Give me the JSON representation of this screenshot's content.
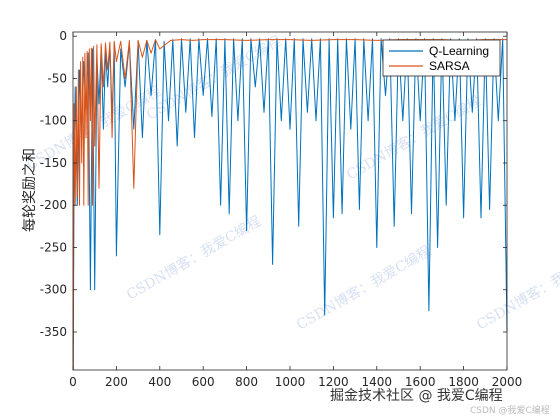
{
  "chart_data": {
    "type": "line",
    "title": "",
    "xlabel": "",
    "ylabel": "每轮奖励之和",
    "xlim": [
      0,
      2000
    ],
    "ylim": [
      -395,
      5
    ],
    "xticks": [
      0,
      200,
      400,
      600,
      800,
      1000,
      1200,
      1400,
      1600,
      1800,
      2000
    ],
    "yticks": [
      0,
      -50,
      -100,
      -150,
      -200,
      -250,
      -300,
      -350
    ],
    "grid": false,
    "legend_position": "top-right",
    "series": [
      {
        "name": "Q-Learning",
        "color": "#0072BD",
        "x": [
          1,
          5,
          10,
          20,
          30,
          40,
          50,
          60,
          70,
          80,
          90,
          100,
          110,
          120,
          130,
          140,
          150,
          160,
          170,
          180,
          190,
          200,
          220,
          240,
          260,
          280,
          300,
          320,
          340,
          360,
          380,
          400,
          420,
          440,
          460,
          480,
          500,
          520,
          540,
          560,
          580,
          600,
          620,
          640,
          660,
          680,
          700,
          720,
          740,
          760,
          780,
          800,
          820,
          840,
          860,
          880,
          900,
          920,
          940,
          960,
          980,
          1000,
          1020,
          1040,
          1060,
          1080,
          1100,
          1120,
          1140,
          1160,
          1180,
          1200,
          1220,
          1240,
          1260,
          1280,
          1300,
          1320,
          1340,
          1360,
          1380,
          1400,
          1420,
          1440,
          1460,
          1480,
          1500,
          1520,
          1540,
          1560,
          1580,
          1600,
          1620,
          1640,
          1660,
          1680,
          1700,
          1720,
          1740,
          1760,
          1780,
          1800,
          1820,
          1840,
          1860,
          1880,
          1900,
          1920,
          1940,
          1960,
          1980,
          2000
        ],
        "y": [
          -395,
          -150,
          -60,
          -200,
          -40,
          -120,
          -30,
          -90,
          -20,
          -300,
          -15,
          -300,
          -25,
          -80,
          -12,
          -110,
          -18,
          -60,
          -10,
          -95,
          -8,
          -260,
          -15,
          -60,
          -8,
          -110,
          -6,
          -120,
          -5,
          -70,
          -4,
          -235,
          -6,
          -100,
          -4,
          -130,
          -3,
          -90,
          -3,
          -120,
          -3,
          -70,
          -3,
          -95,
          -3,
          -200,
          -3,
          -210,
          -3,
          -100,
          -3,
          -230,
          -3,
          -60,
          -3,
          -90,
          -3,
          -270,
          -3,
          -100,
          -3,
          -110,
          -3,
          -225,
          -3,
          -90,
          -3,
          -100,
          -3,
          -330,
          -3,
          -215,
          -3,
          -210,
          -3,
          -110,
          -3,
          -205,
          -3,
          -100,
          -3,
          -250,
          -3,
          -70,
          -3,
          -225,
          -3,
          -100,
          -3,
          -210,
          -3,
          -100,
          -3,
          -325,
          -3,
          -250,
          -3,
          -200,
          -3,
          -100,
          -3,
          -215,
          -3,
          -90,
          -3,
          -215,
          -3,
          -205,
          -3,
          -100,
          -3,
          -350
        ]
      },
      {
        "name": "SARSA",
        "color": "#D95319",
        "x": [
          1,
          5,
          10,
          15,
          20,
          25,
          30,
          35,
          40,
          45,
          50,
          55,
          60,
          65,
          70,
          75,
          80,
          85,
          90,
          95,
          100,
          110,
          120,
          130,
          140,
          150,
          160,
          170,
          180,
          190,
          200,
          220,
          240,
          260,
          280,
          300,
          320,
          340,
          360,
          380,
          400,
          450,
          500,
          550,
          600,
          700,
          800,
          900,
          1000,
          1100,
          1200,
          1300,
          1400,
          1500,
          1600,
          1700,
          1800,
          1900,
          2000
        ],
        "y": [
          -395,
          -80,
          -200,
          -60,
          -190,
          -40,
          -200,
          -30,
          -150,
          -25,
          -200,
          -20,
          -120,
          -18,
          -200,
          -15,
          -100,
          -14,
          -200,
          -12,
          -130,
          -10,
          -180,
          -9,
          -60,
          -8,
          -40,
          -7,
          -120,
          -6,
          -30,
          -6,
          -50,
          -5,
          -180,
          -5,
          -25,
          -5,
          -20,
          -4,
          -15,
          -5,
          -4,
          -5,
          -4,
          -4,
          -5,
          -4,
          -4,
          -5,
          -4,
          -4,
          -5,
          -4,
          -4,
          -4,
          -5,
          -4,
          -4
        ]
      }
    ]
  },
  "watermarks": {
    "tile": "CSDN博客：我爱C编程",
    "left_top": "CSDN博客：我爱C编程",
    "bottom_brand": "掘金技术社区 @ 我爱C编程",
    "bottom_small": "CSDN @我爱C编程"
  }
}
